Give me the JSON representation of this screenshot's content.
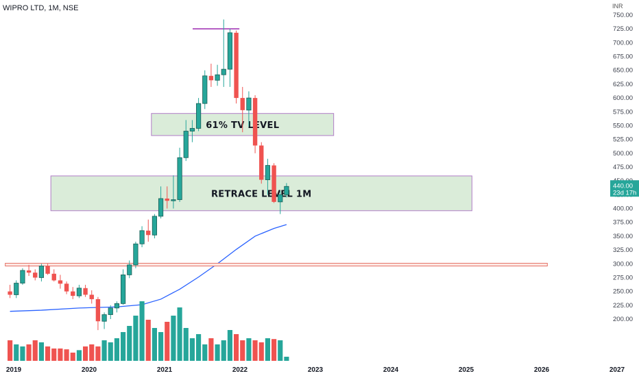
{
  "header": {
    "title": "WIPRO LTD, 1M, NSE",
    "currency": "INR"
  },
  "price_tag": {
    "value": "440.00",
    "countdown": "23d 17h",
    "color": "#26a69a"
  },
  "colors": {
    "up": "#26a69a",
    "down": "#ef5350",
    "vol_up": "#26a69a",
    "vol_down": "#ef5350",
    "ma": "#2962ff",
    "zone_fill": "#d6ead5",
    "zone_border": "#b07cc6"
  },
  "chart_data": {
    "type": "candlestick",
    "ylim": [
      185,
      760
    ],
    "y_ticks": [
      "750.00",
      "725.00",
      "700.00",
      "675.00",
      "650.00",
      "625.00",
      "600.00",
      "575.00",
      "550.00",
      "525.00",
      "500.00",
      "475.00",
      "450.00",
      "425.00",
      "400.00",
      "375.00",
      "350.00",
      "325.00",
      "300.00",
      "275.00",
      "250.00",
      "225.00",
      "200.00"
    ],
    "x_ticks": [
      "2019",
      "2020",
      "2021",
      "2022",
      "2023",
      "2024",
      "2025",
      "2026",
      "2027"
    ],
    "candles_monthly_from": "2019-01",
    "ohlc": [
      [
        250,
        262,
        238,
        244
      ],
      [
        244,
        270,
        238,
        265
      ],
      [
        265,
        292,
        262,
        288
      ],
      [
        288,
        298,
        278,
        284
      ],
      [
        284,
        290,
        270,
        275
      ],
      [
        275,
        300,
        268,
        296
      ],
      [
        296,
        300,
        280,
        282
      ],
      [
        282,
        290,
        268,
        270
      ],
      [
        270,
        280,
        255,
        264
      ],
      [
        264,
        268,
        245,
        250
      ],
      [
        250,
        258,
        236,
        242
      ],
      [
        242,
        262,
        238,
        256
      ],
      [
        256,
        262,
        240,
        244
      ],
      [
        244,
        252,
        228,
        236
      ],
      [
        236,
        240,
        180,
        196
      ],
      [
        196,
        212,
        182,
        208
      ],
      [
        208,
        225,
        200,
        220
      ],
      [
        220,
        232,
        212,
        228
      ],
      [
        228,
        290,
        226,
        280
      ],
      [
        280,
        306,
        274,
        298
      ],
      [
        298,
        340,
        292,
        336
      ],
      [
        336,
        368,
        330,
        360
      ],
      [
        360,
        380,
        340,
        352
      ],
      [
        352,
        390,
        346,
        386
      ],
      [
        386,
        440,
        382,
        418
      ],
      [
        418,
        440,
        400,
        414
      ],
      [
        414,
        460,
        400,
        416
      ],
      [
        416,
        510,
        412,
        492
      ],
      [
        492,
        560,
        486,
        540
      ],
      [
        540,
        560,
        520,
        545
      ],
      [
        545,
        600,
        540,
        590
      ],
      [
        590,
        650,
        580,
        640
      ],
      [
        640,
        662,
        620,
        632
      ],
      [
        632,
        660,
        622,
        642
      ],
      [
        642,
        742,
        620,
        652
      ],
      [
        652,
        725,
        620,
        718
      ],
      [
        718,
        722,
        590,
        600
      ],
      [
        600,
        620,
        538,
        578
      ],
      [
        578,
        612,
        548,
        600
      ],
      [
        600,
        605,
        500,
        514
      ],
      [
        514,
        520,
        445,
        452
      ],
      [
        452,
        490,
        425,
        478
      ],
      [
        478,
        482,
        410,
        412
      ],
      [
        412,
        432,
        390,
        425
      ],
      [
        425,
        446,
        420,
        440
      ]
    ],
    "volume": [
      0.5,
      0.4,
      0.35,
      0.4,
      0.5,
      0.45,
      0.35,
      0.3,
      0.3,
      0.28,
      0.2,
      0.26,
      0.35,
      0.4,
      0.35,
      0.5,
      0.45,
      0.55,
      0.7,
      0.85,
      1.1,
      1.45,
      1.0,
      0.8,
      0.7,
      0.95,
      1.1,
      1.3,
      0.8,
      0.55,
      0.65,
      0.4,
      0.55,
      0.4,
      0.5,
      0.75,
      0.65,
      0.5,
      0.55,
      0.5,
      0.45,
      0.55,
      0.53,
      0.5,
      0.1
    ],
    "moving_average": [
      [
        "2019-01",
        214
      ],
      [
        "2019-06",
        216
      ],
      [
        "2019-12",
        220
      ],
      [
        "2020-06",
        222
      ],
      [
        "2020-10",
        226
      ],
      [
        "2021-01",
        236
      ],
      [
        "2021-04",
        254
      ],
      [
        "2021-07",
        276
      ],
      [
        "2021-10",
        300
      ],
      [
        "2022-01",
        326
      ],
      [
        "2022-04",
        350
      ],
      [
        "2022-07",
        364
      ],
      [
        "2022-09",
        371
      ]
    ],
    "annotations": {
      "zone_61": {
        "label": "61% TV LEVEL",
        "y_top": 572,
        "y_bottom": 532,
        "from": "2020-12",
        "to": "2023-05"
      },
      "zone_retrace": {
        "label": "RETRACE LEVEL 1M",
        "y_top": 459,
        "y_bottom": 396,
        "from": "2019-08",
        "to": "2025-03"
      },
      "line_300": {
        "y_top": 301,
        "y_bottom": 296,
        "from": "2018-11",
        "to": "2026-03"
      },
      "peak_line": {
        "y": 725,
        "from": "2021-07",
        "to": "2022-02"
      }
    }
  }
}
